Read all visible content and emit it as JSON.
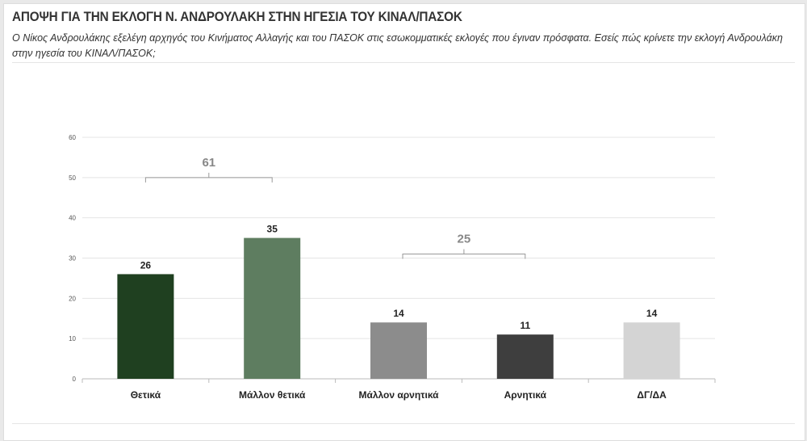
{
  "title": "ΑΠΟΨΗ ΓΙΑ ΤΗΝ ΕΚΛΟΓΗ Ν. ΑΝΔΡΟΥΛΑΚΗ ΣΤΗΝ ΗΓΕΣΙΑ ΤΟΥ ΚΙΝΑΛ/ΠΑΣΟΚ",
  "subtitle": "Ο Νίκος Ανδρουλάκης εξελέγη αρχηγός του Κινήματος Αλλαγής και του ΠΑΣΟΚ στις εσωκομματικές εκλογές που έγιναν πρόσφατα. Εσείς πώς κρίνετε την εκλογή Ανδρουλάκη στην ηγεσία του ΚΙΝΑΛ/ΠΑΣΟΚ;",
  "chart_data": {
    "type": "bar",
    "categories": [
      "Θετικά",
      "Μάλλον θετικά",
      "Μάλλον αρνητικά",
      "Αρνητικά",
      "ΔΓ/ΔΑ"
    ],
    "values": [
      26,
      35,
      14,
      11,
      14
    ],
    "colors": [
      "#1f4020",
      "#5e7d60",
      "#8c8c8c",
      "#3e3e3e",
      "#d4d4d4"
    ],
    "ylim": [
      0,
      60
    ],
    "yticks": [
      0,
      10,
      20,
      30,
      40,
      50,
      60
    ],
    "grid": true,
    "annotations": [
      {
        "label": "61",
        "from": 0,
        "to": 1,
        "level": 50
      },
      {
        "label": "25",
        "from": 2,
        "to": 3,
        "level": 30
      }
    ]
  }
}
